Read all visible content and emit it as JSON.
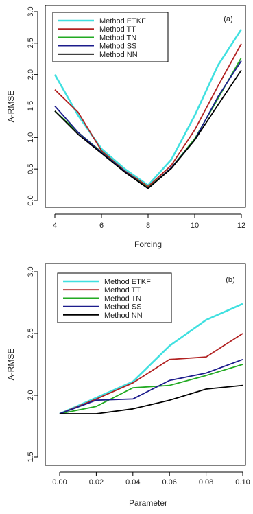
{
  "chart_data": [
    {
      "type": "line",
      "panel_label": "(a)",
      "xlabel": "Forcing",
      "ylabel": "A-RMSE",
      "xlim": [
        4,
        12
      ],
      "ylim": [
        0.0,
        3.0
      ],
      "x_ticks": [
        "4",
        "6",
        "8",
        "10",
        "12"
      ],
      "y_ticks": [
        "0.0",
        "0.5",
        "1.0",
        "1.5",
        "2.0",
        "2.5",
        "3.0"
      ],
      "legend_position": "top-left",
      "x": [
        4,
        5,
        6,
        7,
        8,
        9,
        10,
        11,
        12
      ],
      "series": [
        {
          "name": "Method ETKF",
          "color": "#40E0E0",
          "values": [
            2.0,
            1.35,
            0.82,
            0.5,
            0.24,
            0.65,
            1.35,
            2.15,
            2.72
          ]
        },
        {
          "name": "Method TT",
          "color": "#B22222",
          "values": [
            1.76,
            1.4,
            0.79,
            0.47,
            0.22,
            0.56,
            1.12,
            1.82,
            2.49
          ]
        },
        {
          "name": "Method TN",
          "color": "#22AA22",
          "values": [
            1.42,
            1.08,
            0.77,
            0.46,
            0.2,
            0.52,
            0.98,
            1.62,
            2.27
          ]
        },
        {
          "name": "Method SS",
          "color": "#1C1C8C",
          "values": [
            1.5,
            1.08,
            0.76,
            0.46,
            0.19,
            0.52,
            0.96,
            1.65,
            2.22
          ]
        },
        {
          "name": "Method NN",
          "color": "#000000",
          "values": [
            1.42,
            1.05,
            0.75,
            0.45,
            0.19,
            0.51,
            0.96,
            1.52,
            2.07
          ]
        }
      ]
    },
    {
      "type": "line",
      "panel_label": "(b)",
      "xlabel": "Parameter",
      "ylabel": "A-RMSE",
      "xlim": [
        0.0,
        0.1
      ],
      "ylim": [
        1.5,
        3.0
      ],
      "x_ticks": [
        "0.00",
        "0.02",
        "0.04",
        "0.06",
        "0.08",
        "0.10"
      ],
      "y_ticks": [
        "1.5",
        "2.0",
        "2.5",
        "3.0"
      ],
      "legend_position": "top-left",
      "x": [
        0.0,
        0.02,
        0.04,
        0.06,
        0.08,
        0.1
      ],
      "series": [
        {
          "name": "Method ETKF",
          "color": "#40E0E0",
          "values": [
            1.85,
            1.98,
            2.11,
            2.4,
            2.61,
            2.74
          ]
        },
        {
          "name": "Method TT",
          "color": "#B22222",
          "values": [
            1.85,
            1.97,
            2.1,
            2.29,
            2.31,
            2.5
          ]
        },
        {
          "name": "Method TN",
          "color": "#22AA22",
          "values": [
            1.85,
            1.91,
            2.06,
            2.08,
            2.16,
            2.25
          ]
        },
        {
          "name": "Method SS",
          "color": "#1C1C8C",
          "values": [
            1.85,
            1.96,
            1.97,
            2.12,
            2.18,
            2.29
          ]
        },
        {
          "name": "Method NN",
          "color": "#000000",
          "values": [
            1.85,
            1.85,
            1.89,
            1.96,
            2.05,
            2.08
          ]
        }
      ]
    }
  ]
}
